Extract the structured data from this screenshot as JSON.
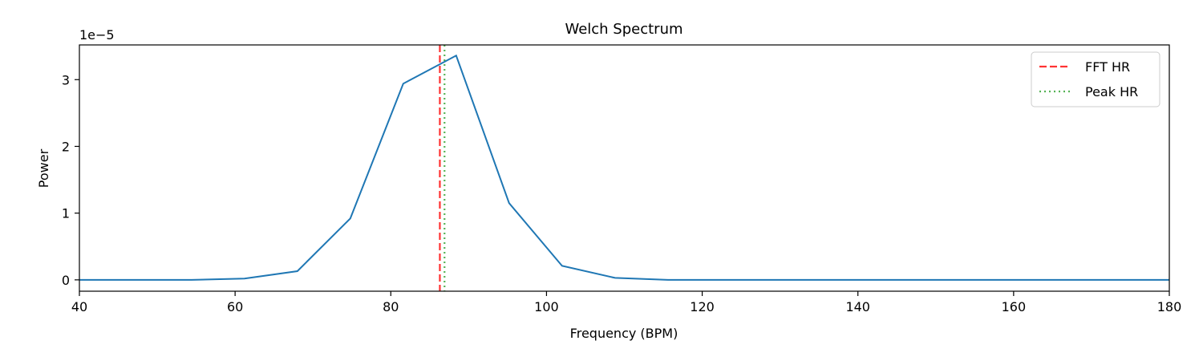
{
  "chart_data": {
    "type": "line",
    "title": "Welch Spectrum",
    "xlabel": "Frequency (BPM)",
    "ylabel": "Power",
    "y_offset_text": "1e−5",
    "xlim": [
      40,
      180
    ],
    "ylim": [
      -0.17,
      3.52
    ],
    "x_ticks": [
      40,
      60,
      80,
      100,
      120,
      140,
      160,
      180
    ],
    "y_ticks": [
      0,
      1,
      2,
      3
    ],
    "grid": false,
    "legend_position": "top-right",
    "series": [
      {
        "color": "#1f77b4",
        "x": [
          33.8,
          40.8,
          47.6,
          54.4,
          61.2,
          68.0,
          74.8,
          81.6,
          88.4,
          95.2,
          102.0,
          108.8,
          115.6,
          122.4,
          129.2,
          136.0,
          142.8,
          149.6,
          156.4,
          163.2,
          170.0,
          176.8,
          183.6
        ],
        "values": [
          0.0,
          0.0,
          0.0,
          0.0,
          0.02,
          0.13,
          0.92,
          2.94,
          3.36,
          1.15,
          0.21,
          0.03,
          0.0,
          0.0,
          0.0,
          0.0,
          0.0,
          0.0,
          0.0,
          0.0,
          0.0,
          0.0,
          0.0
        ]
      }
    ],
    "vlines": [
      {
        "name": "FFT HR",
        "x": 86.3,
        "color": "#ff0000",
        "style": "dashed"
      },
      {
        "name": "Peak HR",
        "x": 86.9,
        "color": "#2ca02c",
        "style": "dotted"
      }
    ]
  }
}
